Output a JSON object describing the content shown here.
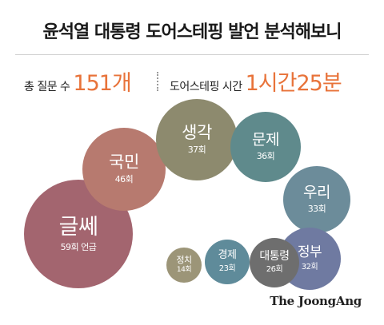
{
  "title": "윤석열 대통령 도어스테핑 발언 분석해보니",
  "stats": {
    "total_label": "총 질문 수",
    "total_value": "151개",
    "time_label": "도어스테핑 시간",
    "time_value": "1시간25분"
  },
  "bubbles": [
    {
      "word": "글쎄",
      "count": "59회 언급",
      "color": "#a3656f"
    },
    {
      "word": "국민",
      "count": "46회",
      "color": "#b77a6f"
    },
    {
      "word": "생각",
      "count": "37회",
      "color": "#8d8a6e"
    },
    {
      "word": "문제",
      "count": "36회",
      "color": "#5f8a8c"
    },
    {
      "word": "우리",
      "count": "33회",
      "color": "#6c8c9a"
    },
    {
      "word": "정부",
      "count": "32회",
      "color": "#6f7aa1"
    },
    {
      "word": "대통령",
      "count": "26회",
      "color": "#6e6e6e"
    },
    {
      "word": "경제",
      "count": "23회",
      "color": "#5f8b9a"
    },
    {
      "word": "정치",
      "count": "14회",
      "color": "#9c9578"
    }
  ],
  "credit": "The JoongAng"
}
